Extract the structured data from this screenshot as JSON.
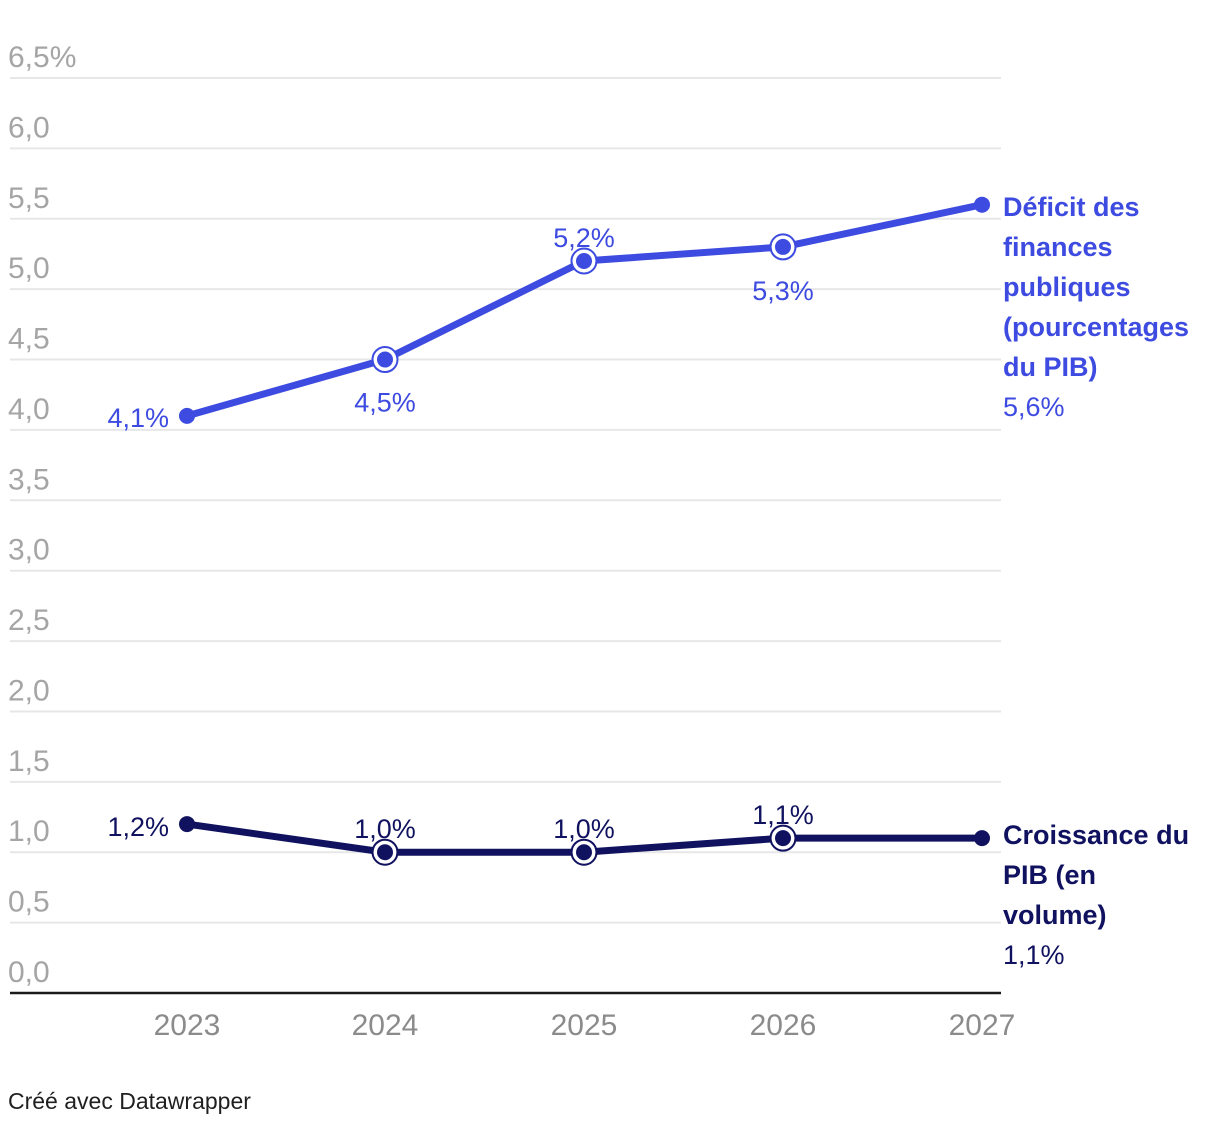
{
  "chart_data": {
    "type": "line",
    "x": [
      "2023",
      "2024",
      "2025",
      "2026",
      "2027"
    ],
    "ylim": [
      0,
      6.5
    ],
    "grid": true,
    "legend_position": "right",
    "y_ticks": [
      {
        "v": 6.5,
        "label": "6,5%"
      },
      {
        "v": 6.0,
        "label": "6,0"
      },
      {
        "v": 5.5,
        "label": "5,5"
      },
      {
        "v": 5.0,
        "label": "5,0"
      },
      {
        "v": 4.5,
        "label": "4,5"
      },
      {
        "v": 4.0,
        "label": "4,0"
      },
      {
        "v": 3.5,
        "label": "3,5"
      },
      {
        "v": 3.0,
        "label": "3,0"
      },
      {
        "v": 2.5,
        "label": "2,5"
      },
      {
        "v": 2.0,
        "label": "2,0"
      },
      {
        "v": 1.5,
        "label": "1,5"
      },
      {
        "v": 1.0,
        "label": "1,0"
      },
      {
        "v": 0.5,
        "label": "0,5"
      },
      {
        "v": 0.0,
        "label": "0,0"
      }
    ],
    "series": [
      {
        "key": "deficit",
        "name": "Déficit des finances publiques (pourcentages du PIB)",
        "name_lines": [
          "Déficit des",
          "finances",
          "publiques",
          "(pourcentages",
          "du PIB)"
        ],
        "legend_value": "5,6%",
        "color": "#3d4be0",
        "values": [
          4.1,
          4.5,
          5.2,
          5.3,
          5.6
        ],
        "labels": [
          "4,1%",
          "4,5%",
          "5,2%",
          "5,3%",
          "5,6%"
        ],
        "markers": [
          "dot",
          "ring",
          "ring",
          "ring",
          "dot"
        ]
      },
      {
        "key": "croissance",
        "name": "Croissance du PIB (en volume)",
        "name_lines": [
          "Croissance du",
          "PIB (en",
          "volume)"
        ],
        "legend_value": "1,1%",
        "color": "#10125f",
        "values": [
          1.2,
          1.0,
          1.0,
          1.1,
          1.1
        ],
        "labels": [
          "1,2%",
          "1,0%",
          "1,0%",
          "1,1%",
          "1,1%"
        ],
        "markers": [
          "dot",
          "ring",
          "ring",
          "ring",
          "dot"
        ]
      }
    ],
    "colors": {
      "grid": "#e7e7e7",
      "axis_baseline": "#1a1a1a",
      "y_tick_text": "#a5a5a5",
      "x_tick_text": "#8b8b8b"
    }
  },
  "footer": {
    "credit": "Créé avec Datawrapper"
  }
}
